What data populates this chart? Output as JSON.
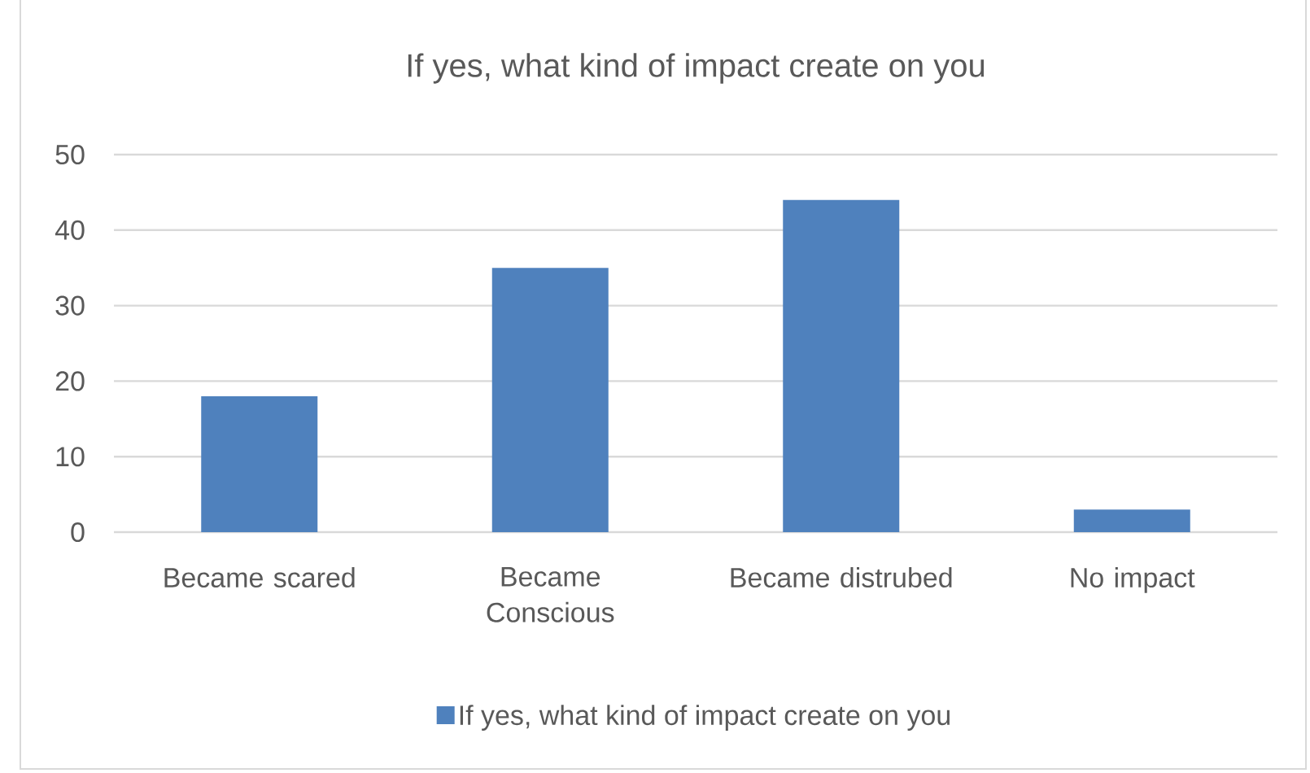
{
  "chart_data": {
    "type": "bar",
    "title": "If yes, what kind of impact create on you",
    "categories": [
      "Became scared",
      "Became Conscious",
      "Became distrubed",
      "No impact"
    ],
    "series": [
      {
        "name": "If yes, what kind of impact create on you",
        "color": "#4f81bd",
        "values": [
          18,
          35,
          44,
          3
        ]
      }
    ],
    "ylim": [
      0,
      50
    ],
    "yticks": [
      0,
      10,
      20,
      30,
      40,
      50
    ],
    "grid": "y",
    "legend": "bottom"
  }
}
